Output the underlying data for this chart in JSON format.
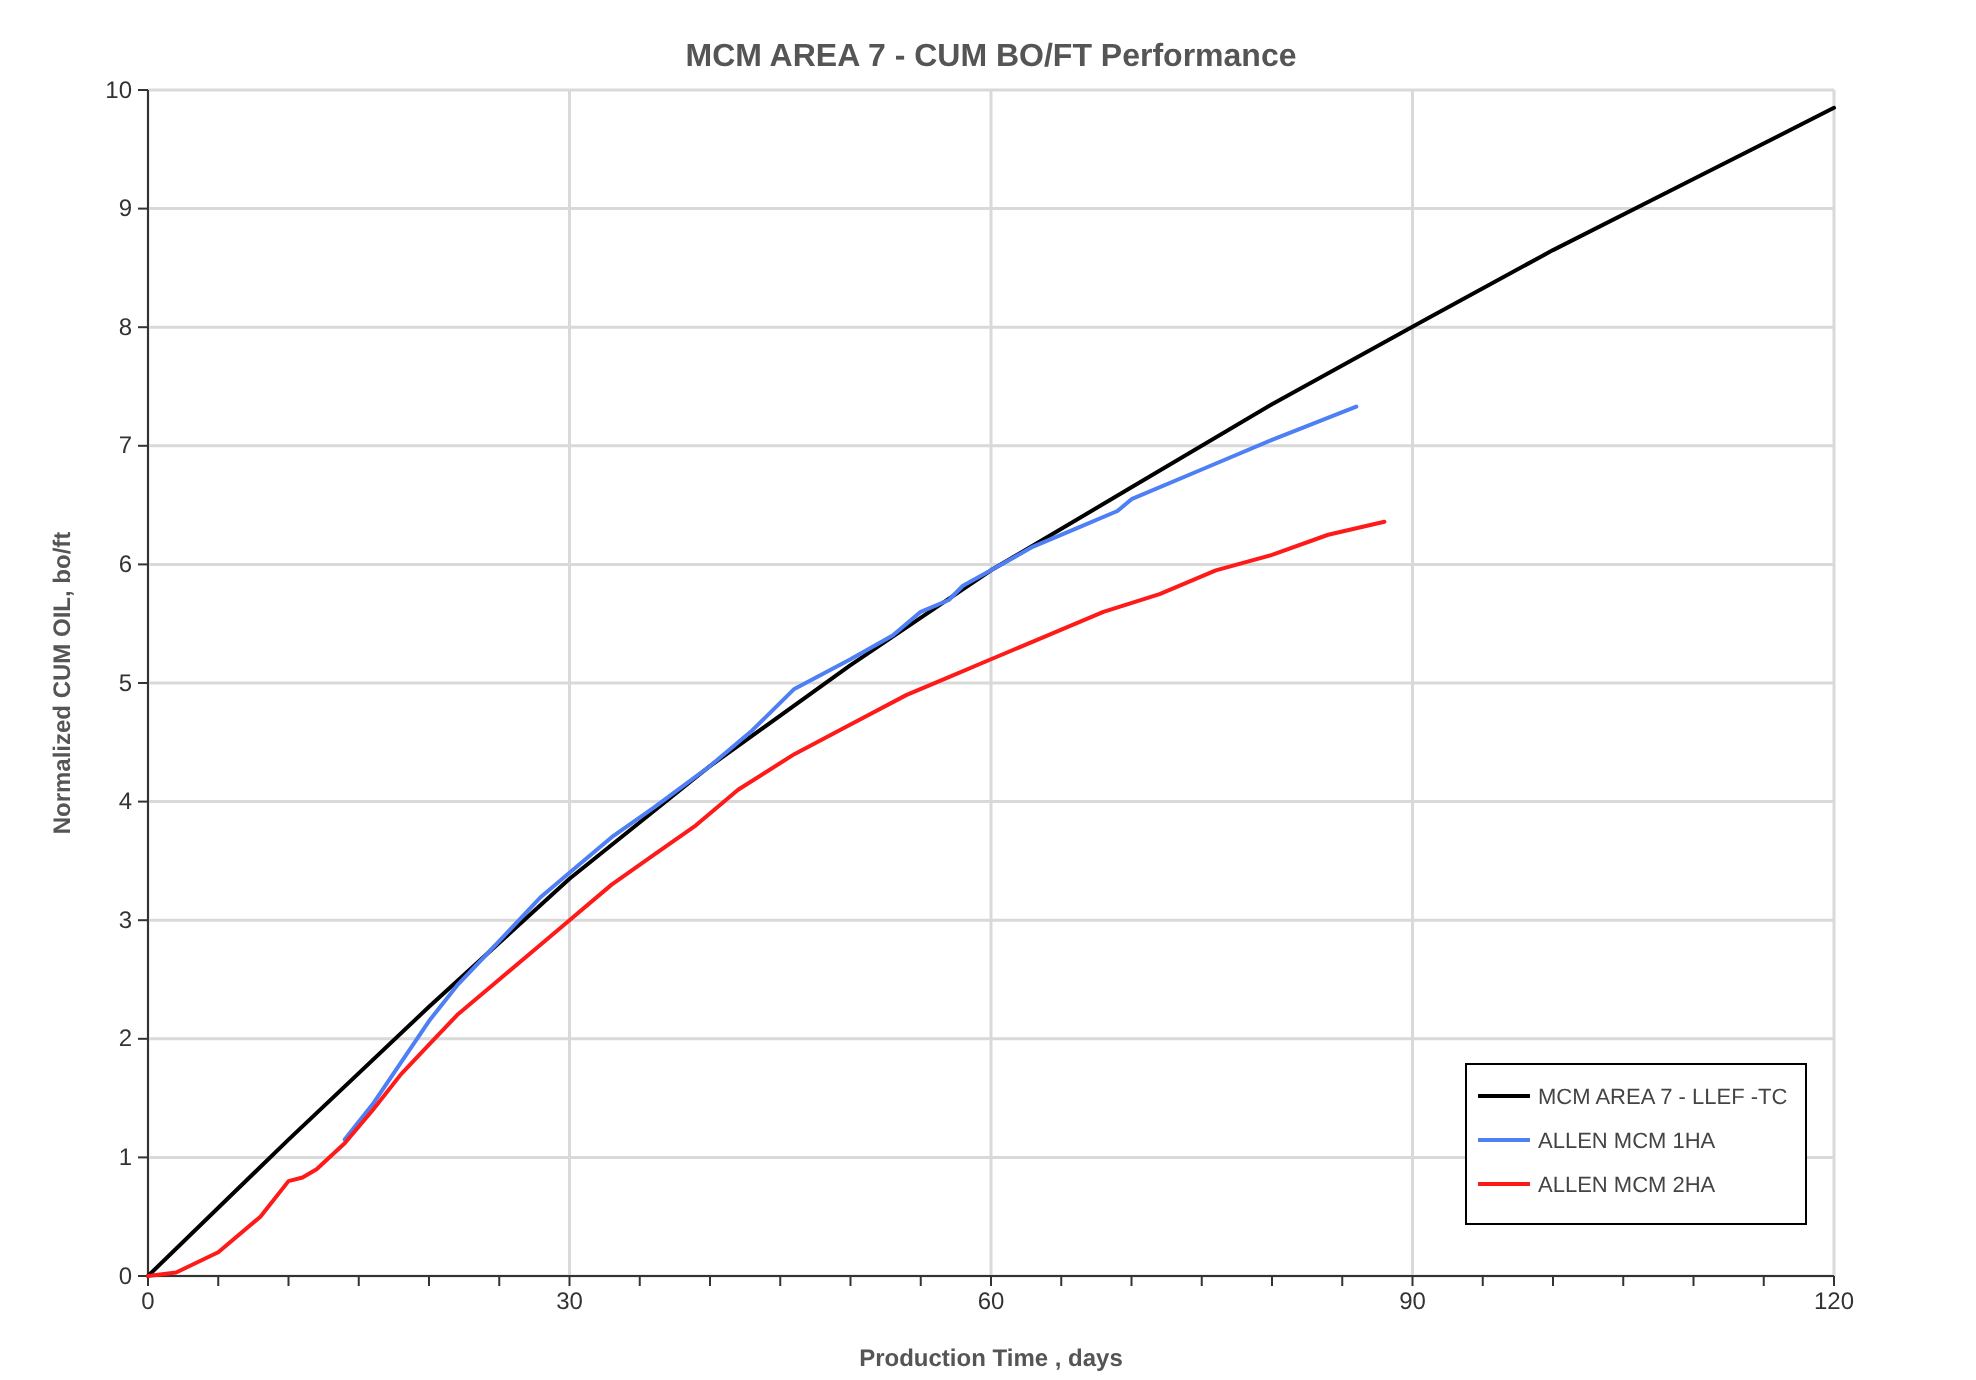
{
  "chart_data": {
    "type": "line",
    "title": "MCM AREA 7 - CUM BO/FT Performance",
    "xlabel": "Production Time , days",
    "ylabel": "Normalized CUM OIL, bo/ft",
    "xlim": [
      0,
      120
    ],
    "ylim": [
      0,
      10
    ],
    "xticks": [
      0,
      {
        "value": 5,
        "label": null
      },
      {
        "value": 10,
        "label": null
      },
      {
        "value": 15,
        "label": null
      },
      {
        "value": 20,
        "label": null
      },
      {
        "value": 25,
        "label": null
      },
      30,
      {
        "value": 35,
        "label": null
      },
      {
        "value": 40,
        "label": null
      },
      {
        "value": 45,
        "label": null
      },
      {
        "value": 50,
        "label": null
      },
      {
        "value": 55,
        "label": null
      },
      60,
      {
        "value": 65,
        "label": null
      },
      {
        "value": 70,
        "label": null
      },
      {
        "value": 75,
        "label": null
      },
      {
        "value": 80,
        "label": null
      },
      {
        "value": 85,
        "label": null
      },
      90,
      {
        "value": 95,
        "label": null
      },
      {
        "value": 100,
        "label": null
      },
      {
        "value": 105,
        "label": null
      },
      {
        "value": 110,
        "label": null
      },
      {
        "value": 115,
        "label": null
      },
      120
    ],
    "yticks": [
      0,
      1,
      2,
      3,
      4,
      5,
      6,
      7,
      8,
      9,
      10
    ],
    "grid": true,
    "legend": "bottom right",
    "line_style": "solid",
    "marker": "none",
    "series": [
      {
        "name": "MCM AREA 7 - LLEF -TC",
        "color": "#000000",
        "x": [
          0,
          10,
          20,
          30,
          40,
          50,
          60,
          70,
          80,
          91,
          100,
          110,
          120
        ],
        "values": [
          0,
          1.15,
          2.27,
          3.35,
          4.3,
          5.15,
          5.95,
          6.65,
          7.35,
          8.07,
          8.65,
          9.25,
          9.85
        ]
      },
      {
        "name": "ALLEN MCM 1HA",
        "color": "#4f7ff5",
        "x": [
          14,
          16,
          18,
          20,
          22,
          24,
          26,
          28,
          30,
          33,
          36,
          40,
          43,
          46,
          50,
          53,
          55,
          57,
          58,
          60,
          63,
          66,
          69,
          70,
          75,
          80,
          86
        ],
        "values": [
          1.15,
          1.45,
          1.8,
          2.15,
          2.45,
          2.7,
          2.95,
          3.2,
          3.4,
          3.7,
          3.95,
          4.3,
          4.6,
          4.95,
          5.2,
          5.4,
          5.6,
          5.7,
          5.82,
          5.95,
          6.15,
          6.3,
          6.45,
          6.55,
          6.8,
          7.05,
          7.33
        ]
      },
      {
        "name": "ALLEN MCM 2HA",
        "color": "#ff1a1a",
        "x": [
          0,
          2,
          5,
          8,
          10,
          11,
          12,
          14,
          16,
          18,
          20,
          22,
          25,
          28,
          30,
          33,
          36,
          39,
          42,
          46,
          50,
          54,
          57,
          60,
          64,
          68,
          72,
          76,
          80,
          84,
          88
        ],
        "values": [
          0,
          0.03,
          0.2,
          0.5,
          0.8,
          0.83,
          0.9,
          1.12,
          1.4,
          1.7,
          1.95,
          2.2,
          2.5,
          2.8,
          3.0,
          3.3,
          3.55,
          3.8,
          4.1,
          4.4,
          4.65,
          4.9,
          5.05,
          5.2,
          5.4,
          5.6,
          5.75,
          5.95,
          6.08,
          6.25,
          6.36
        ]
      }
    ]
  }
}
